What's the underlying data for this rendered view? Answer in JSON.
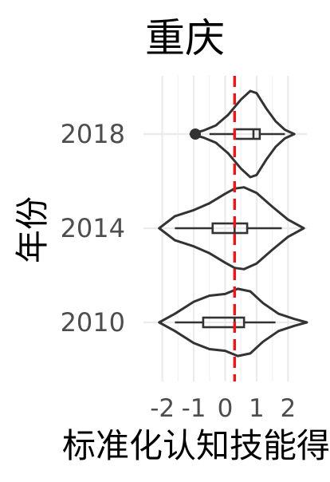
{
  "chart_data": {
    "type": "violin",
    "title": "重庆",
    "xlabel": "标准化认知技能得分",
    "ylabel": "年份",
    "categories": [
      "2018",
      "2014",
      "2010"
    ],
    "x_ticks": [
      "-2",
      "-1",
      "0",
      "1",
      "2"
    ],
    "x_tick_values": [
      -2,
      -1,
      0,
      1,
      2
    ],
    "xlim": [
      -2.6,
      2.6
    ],
    "grid": true,
    "reference_line": {
      "x": 0.3,
      "color": "#e41a1c",
      "style": "dashed"
    },
    "series": [
      {
        "category": "2018",
        "box": {
          "q1": 0.3,
          "median": 0.9,
          "q3": 1.1,
          "whisker_low": -0.5,
          "whisker_high": 1.9
        },
        "outliers": [
          -0.95
        ],
        "density_x": [
          -1.1,
          -0.7,
          -0.3,
          0.1,
          0.5,
          0.8,
          1.0,
          1.3,
          1.6,
          1.9,
          2.2
        ],
        "density_half_width": [
          0.0,
          0.08,
          0.2,
          0.45,
          0.8,
          1.0,
          0.95,
          0.6,
          0.3,
          0.1,
          0.0
        ]
      },
      {
        "category": "2014",
        "box": {
          "q1": -0.4,
          "median": 0.3,
          "q3": 0.7,
          "whisker_low": -1.6,
          "whisker_high": 1.8
        },
        "outliers": [],
        "density_x": [
          -2.1,
          -1.6,
          -1.0,
          -0.5,
          0.0,
          0.3,
          0.6,
          1.0,
          1.5,
          2.0,
          2.5
        ],
        "density_half_width": [
          0.0,
          0.28,
          0.42,
          0.58,
          0.8,
          0.92,
          0.95,
          0.82,
          0.5,
          0.2,
          0.0
        ]
      },
      {
        "category": "2010",
        "box": {
          "q1": -0.7,
          "median": 0.3,
          "q3": 0.6,
          "whisker_low": -1.6,
          "whisker_high": 1.6
        },
        "outliers": [],
        "density_x": [
          -2.1,
          -1.6,
          -1.0,
          -0.5,
          0.0,
          0.4,
          0.8,
          1.2,
          1.7,
          2.2,
          2.6
        ],
        "density_half_width": [
          0.0,
          0.2,
          0.48,
          0.62,
          0.66,
          0.78,
          0.72,
          0.45,
          0.2,
          0.08,
          0.0
        ]
      }
    ]
  }
}
